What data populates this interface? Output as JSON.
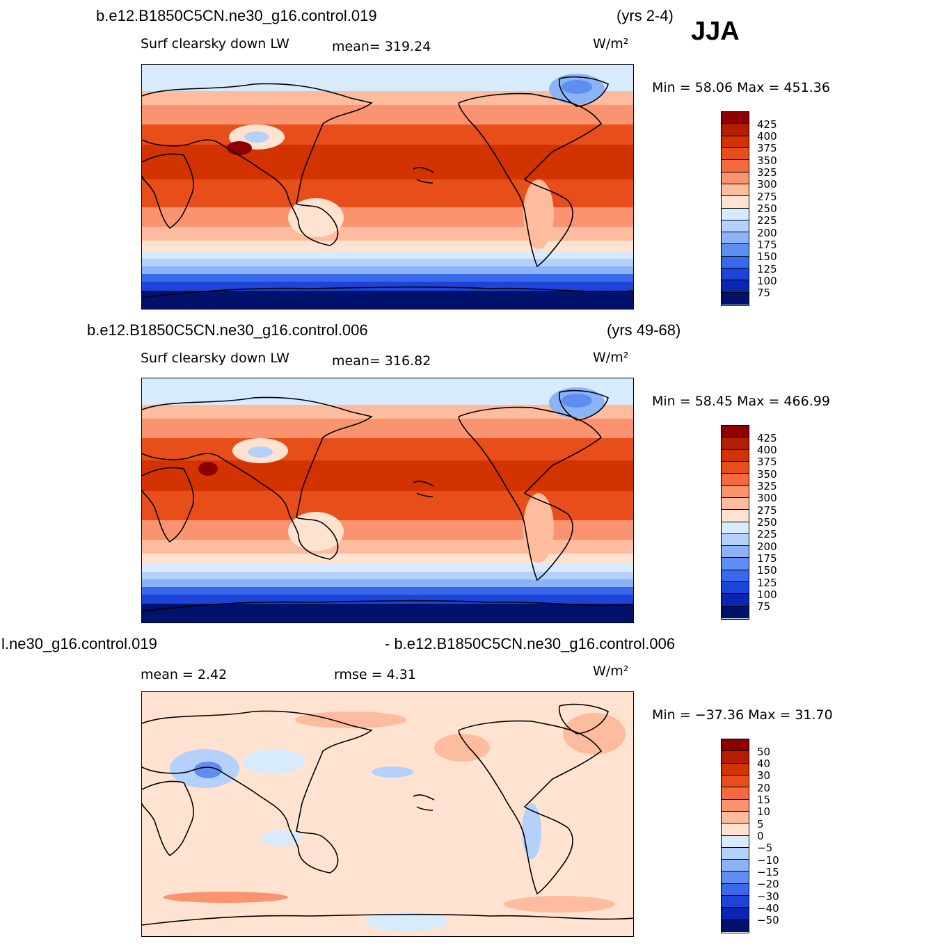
{
  "season": "JJA",
  "panels": [
    {
      "case_title": "b.e12.B1850C5CN.ne30_g16.control.019",
      "years": "(yrs 2-4)",
      "variable": "Surf clearsky down LW",
      "mean_text": "mean= 319.24",
      "units": "W/m²",
      "minmax": "Min =  58.06 Max = 451.36",
      "colorbar": {
        "labels": [
          "425",
          "400",
          "375",
          "350",
          "325",
          "300",
          "275",
          "250",
          "225",
          "200",
          "175",
          "150",
          "125",
          "100",
          "75"
        ],
        "colors": [
          "#8c0000",
          "#b31e00",
          "#d33300",
          "#e84e1a",
          "#f46a3f",
          "#fa9370",
          "#fdbc9e",
          "#ffe3d0",
          "#d8ebfc",
          "#b3d1fa",
          "#8bb3f5",
          "#5f8ef1",
          "#3968ea",
          "#1c44d8",
          "#0a25b0",
          "#00126b"
        ]
      },
      "map": {
        "mean": 319.24,
        "min": 58.06,
        "max": 451.36
      }
    },
    {
      "case_title": "b.e12.B1850C5CN.ne30_g16.control.006",
      "years": "(yrs 49-68)",
      "variable": "Surf clearsky down LW",
      "mean_text": "mean= 316.82",
      "units": "W/m²",
      "minmax": "Min =  58.45 Max = 466.99",
      "colorbar": {
        "labels": [
          "425",
          "400",
          "375",
          "350",
          "325",
          "300",
          "275",
          "250",
          "225",
          "200",
          "175",
          "150",
          "125",
          "100",
          "75"
        ],
        "colors": [
          "#8c0000",
          "#b31e00",
          "#d33300",
          "#e84e1a",
          "#f46a3f",
          "#fa9370",
          "#fdbc9e",
          "#ffe3d0",
          "#d8ebfc",
          "#b3d1fa",
          "#8bb3f5",
          "#5f8ef1",
          "#3968ea",
          "#1c44d8",
          "#0a25b0",
          "#00126b"
        ]
      },
      "map": {
        "mean": 316.82,
        "min": 58.45,
        "max": 466.99
      }
    },
    {
      "case_title_left": "l.ne30_g16.control.019",
      "case_title_right": "- b.e12.B1850C5CN.ne30_g16.control.006",
      "mean_text": "mean =    2.42",
      "rmse_text": "rmse =    4.31",
      "units": "W/m²",
      "minmax": "Min = −37.36 Max =   31.70",
      "colorbar": {
        "labels": [
          "50",
          "40",
          "30",
          "20",
          "15",
          "10",
          "5",
          "0",
          "−5",
          "−10",
          "−15",
          "−20",
          "−30",
          "−40",
          "−50"
        ],
        "colors": [
          "#8c0000",
          "#b31e00",
          "#d33300",
          "#e84e1a",
          "#f46a3f",
          "#fa9370",
          "#fdbc9e",
          "#ffe3d0",
          "#d8ebfc",
          "#b3d1fa",
          "#8bb3f5",
          "#5f8ef1",
          "#3968ea",
          "#1c44d8",
          "#0a25b0",
          "#00126b"
        ]
      },
      "map": {
        "mean": 2.42,
        "rmse": 4.31,
        "min": -37.36,
        "max": 31.7
      }
    }
  ]
}
